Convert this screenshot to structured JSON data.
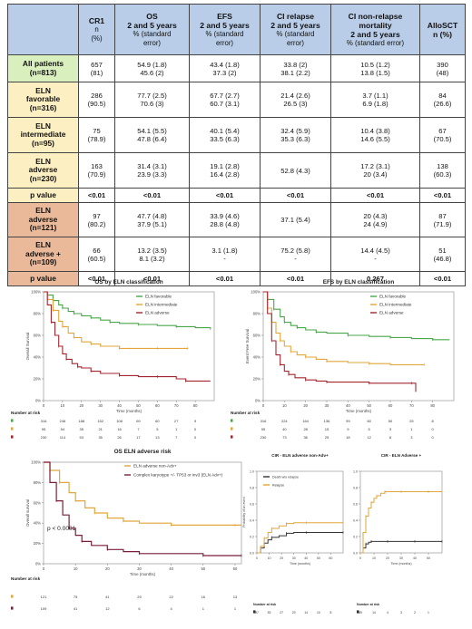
{
  "table": {
    "headers": [
      {
        "l1": "",
        "l2": ""
      },
      {
        "l1": "CR1",
        "l2": "n\n(%)"
      },
      {
        "l1": "OS\n2 and 5 years",
        "l2": "% (standard\nerror)"
      },
      {
        "l1": "EFS\n2 and 5 years",
        "l2": "% (standard\nerror)"
      },
      {
        "l1": "CI relapse\n2 and 5 years",
        "l2": "% (standard\nerror)"
      },
      {
        "l1": "CI non-relapse\nmortality\n2 and 5 years",
        "l2": "% (standard error)"
      },
      {
        "l1": "AlloSCT\nn (%)",
        "l2": ""
      }
    ],
    "rows": [
      {
        "label": "All patients\n(n=813)",
        "bg": "g",
        "cells": [
          "657\n(81)",
          "54.9 (1.8)\n45.6 (2)",
          "43.4 (1.8)\n37.3 (2)",
          "33.8 (2)\n38.1 (2.2)",
          "10.5 (1.2)\n13.8 (1.5)",
          "390\n(48)"
        ]
      },
      {
        "label": "ELN\nfavorable\n(n=316)",
        "bg": "y",
        "cells": [
          "286\n(90.5)",
          "77.7 (2.5)\n70.6 (3)",
          "67.7 (2.7)\n60.7 (3.1)",
          "21.4 (2.6)\n26.5 (3)",
          "3.7 (1.1)\n6.9 (1.8)",
          "84\n(26.6)"
        ]
      },
      {
        "label": "ELN\nintermediate\n(n=95)",
        "bg": "y",
        "cells": [
          "75\n(78.9)",
          "54.1 (5.5)\n47.8 (6.4)",
          "40.1 (5.4)\n33.5 (6.3)",
          "32.4 (5.9)\n35.3 (6.3)",
          "10.4 (3.8)\n14.6 (5.5)",
          "67\n(70.5)"
        ]
      },
      {
        "label": "ELN\nadverse\n(n=230)",
        "bg": "y",
        "cells": [
          "163\n(70.9)",
          "31.4 (3.1)\n23.9 (3.3)",
          "19.1 (2.8)\n16.4 (2.8)",
          "52.8 (4.3)",
          "17.2 (3.1)\n20 (3.4)",
          "138\n(60.3)"
        ]
      },
      {
        "label": "p value",
        "bg": "y",
        "pv": true,
        "cells": [
          "<0.01",
          "<0.01",
          "<0.01",
          "<0.01",
          "<0.01",
          "<0.01"
        ]
      },
      {
        "label": "ELN\nadverse\n(n=121)",
        "bg": "o",
        "cells": [
          "97\n(80.2)",
          "47.7 (4.8)\n37.9 (5.1)",
          "33.9 (4.6)\n28.8 (4.8)",
          "37.1 (5.4)",
          "20 (4.3)\n24 (4.9)",
          "87\n(71.9)"
        ]
      },
      {
        "label": "ELN\nadverse +\n(n=109)",
        "bg": "o",
        "cells": [
          "66\n(60.5)",
          "13.2 (3.5)\n8.1 (3.2)",
          "3.1 (1.8)\n-",
          "75.2 (5.8)\n-",
          "14.4 (4.5)\n-",
          "51\n(46.8)"
        ]
      },
      {
        "label": "p value",
        "bg": "o",
        "pv": true,
        "cells": [
          "<0.01",
          "<0.01",
          "<0.01",
          "<0.01",
          "0.267",
          "<0.01"
        ]
      }
    ]
  },
  "chart_data": [
    {
      "type": "line",
      "title": "OS by ELN classification",
      "ylabel": "Overall Survival",
      "xlabel": "Time (months)",
      "xlim": [
        0,
        90
      ],
      "ylim": [
        0,
        100
      ],
      "xticks": [
        0,
        10,
        20,
        30,
        40,
        50,
        60,
        70,
        80
      ],
      "yticks": [
        "0%",
        "20%",
        "40%",
        "60%",
        "80%",
        "100%"
      ],
      "legend_position": "right",
      "series": [
        {
          "name": "ELN favorable",
          "color": "#4aa64a",
          "x": [
            0,
            2,
            5,
            8,
            10,
            13,
            16,
            20,
            25,
            30,
            35,
            40,
            50,
            60,
            70,
            80,
            88
          ],
          "y": [
            100,
            97,
            92,
            88,
            85,
            82,
            80,
            78,
            76,
            74,
            72,
            71,
            70,
            69,
            68,
            67,
            66
          ]
        },
        {
          "name": "ELN intermediate",
          "color": "#e2a63a",
          "x": [
            0,
            2,
            5,
            8,
            10,
            13,
            16,
            20,
            25,
            30,
            40,
            50,
            60,
            70,
            76
          ],
          "y": [
            100,
            93,
            83,
            73,
            68,
            62,
            58,
            54,
            52,
            50,
            48,
            48,
            48,
            48,
            48
          ]
        },
        {
          "name": "ELN adverse",
          "color": "#a3262f",
          "x": [
            0,
            2,
            4,
            6,
            8,
            10,
            12,
            15,
            18,
            20,
            25,
            30,
            40,
            50,
            60,
            70,
            75,
            88
          ],
          "y": [
            100,
            88,
            72,
            60,
            50,
            43,
            38,
            34,
            31,
            30,
            27,
            25,
            23,
            22,
            22,
            20,
            18,
            18
          ]
        }
      ],
      "risk_table": {
        "title": "Number at risk",
        "rows": [
          {
            "color": "#4aa64a",
            "values": [
              "316",
              "246",
              "188",
              "152",
              "108",
              "69",
              "60",
              "27",
              "9"
            ]
          },
          {
            "color": "#e2a63a",
            "values": [
              "95",
              "54",
              "35",
              "21",
              "16",
              "7",
              "5",
              "1",
              "0"
            ]
          },
          {
            "color": "#a3262f",
            "values": [
              "230",
              "114",
              "53",
              "35",
              "26",
              "17",
              "13",
              "7",
              "0"
            ]
          }
        ]
      }
    },
    {
      "type": "line",
      "title": "EFS by ELN classification",
      "ylabel": "Event Free Survival",
      "xlabel": "Time (months)",
      "xlim": [
        0,
        90
      ],
      "ylim": [
        0,
        100
      ],
      "xticks": [
        0,
        10,
        20,
        30,
        40,
        50,
        60,
        70,
        80
      ],
      "yticks": [
        "0%",
        "20%",
        "40%",
        "60%",
        "80%",
        "100%"
      ],
      "legend_position": "right",
      "series": [
        {
          "name": "ELN favorable",
          "color": "#4aa64a",
          "x": [
            0,
            2,
            5,
            8,
            10,
            13,
            16,
            20,
            25,
            30,
            40,
            50,
            60,
            70,
            80,
            88
          ],
          "y": [
            100,
            93,
            84,
            77,
            72,
            69,
            67,
            65,
            63,
            62,
            60,
            59,
            58,
            57,
            56,
            56
          ]
        },
        {
          "name": "ELN intermediate",
          "color": "#e2a63a",
          "x": [
            0,
            2,
            4,
            6,
            8,
            10,
            13,
            16,
            20,
            25,
            30,
            40,
            50,
            60,
            76
          ],
          "y": [
            100,
            85,
            72,
            62,
            55,
            50,
            45,
            42,
            40,
            38,
            36,
            35,
            34,
            33,
            33
          ]
        },
        {
          "name": "ELN adverse",
          "color": "#a3262f",
          "x": [
            0,
            2,
            4,
            6,
            8,
            10,
            12,
            15,
            20,
            25,
            30,
            40,
            50,
            60,
            70,
            72
          ],
          "y": [
            100,
            80,
            55,
            42,
            33,
            27,
            24,
            21,
            19,
            18,
            17,
            17,
            16,
            16,
            16,
            8
          ]
        }
      ],
      "risk_table": {
        "title": "Number at risk",
        "rows": [
          {
            "color": "#4aa64a",
            "values": [
              "316",
              "224",
              "164",
              "136",
              "99",
              "60",
              "50",
              "25",
              "8"
            ]
          },
          {
            "color": "#e2a63a",
            "values": [
              "95",
              "40",
              "28",
              "15",
              "9",
              "5",
              "3",
              "1",
              "0"
            ]
          },
          {
            "color": "#a3262f",
            "values": [
              "230",
              "73",
              "36",
              "25",
              "18",
              "12",
              "8",
              "3",
              "0"
            ]
          }
        ]
      }
    },
    {
      "type": "line",
      "title": "OS ELN adverse risk",
      "ylabel": "Overall survival",
      "xlabel": "Time (months)",
      "xlim": [
        0,
        62
      ],
      "ylim": [
        0,
        100
      ],
      "xticks": [
        0,
        10,
        20,
        30,
        40,
        50,
        60
      ],
      "yticks": [
        "0%",
        "20%",
        "40%",
        "60%",
        "80%",
        "100%"
      ],
      "legend_position": "top-right",
      "annotation": "p < 0.0001",
      "series": [
        {
          "name": "ELN adverse non-Adv+",
          "color": "#e2a63a",
          "x": [
            0,
            2,
            5,
            8,
            10,
            13,
            16,
            20,
            25,
            30,
            40,
            50,
            60,
            62
          ],
          "y": [
            100,
            92,
            80,
            70,
            62,
            55,
            50,
            45,
            42,
            40,
            38,
            38,
            38,
            38
          ]
        },
        {
          "name": "Complex karyotype +/- TP53 or inv3 (ELN Adv+)",
          "color": "#7a1f3a",
          "x": [
            0,
            2,
            4,
            6,
            8,
            10,
            12,
            15,
            20,
            25,
            30,
            40,
            50,
            60,
            62
          ],
          "y": [
            100,
            80,
            62,
            48,
            35,
            28,
            22,
            18,
            14,
            12,
            10,
            10,
            8,
            8,
            8
          ]
        }
      ],
      "risk_table": {
        "title": "Number at risk",
        "rows": [
          {
            "color": "#e2a63a",
            "values": [
              "121",
              "75",
              "41",
              "29",
              "22",
              "16",
              "13"
            ]
          },
          {
            "color": "#7a1f3a",
            "values": [
              "109",
              "41",
              "12",
              "6",
              "4",
              "1",
              "1"
            ]
          }
        ]
      }
    },
    {
      "type": "line",
      "title": "CIR - ELN adverse non-Adv+",
      "ylabel": "Probability of an event",
      "xlabel": "Time (months)",
      "xlim": [
        0,
        70
      ],
      "ylim": [
        0,
        1
      ],
      "xticks": [
        0,
        10,
        20,
        30,
        40,
        50,
        60
      ],
      "yticks": [
        "0.0",
        "0.2",
        "0.4",
        "0.6",
        "0.8",
        "1.0"
      ],
      "legend_position": "top-left",
      "series": [
        {
          "name": "Death w/o relapse",
          "color": "#333333",
          "x": [
            0,
            3,
            6,
            9,
            12,
            18,
            24,
            30,
            40,
            60,
            70
          ],
          "y": [
            0,
            0.06,
            0.12,
            0.16,
            0.19,
            0.21,
            0.24,
            0.25,
            0.25,
            0.25,
            0.25
          ]
        },
        {
          "name": "Relapse",
          "color": "#e2a63a",
          "x": [
            0,
            3,
            6,
            9,
            12,
            18,
            24,
            30,
            40,
            60,
            70
          ],
          "y": [
            0,
            0.08,
            0.18,
            0.25,
            0.3,
            0.33,
            0.36,
            0.37,
            0.37,
            0.37,
            0.37
          ]
        }
      ],
      "risk_table": {
        "title": "Number at risk",
        "rows": [
          {
            "color": "#333333",
            "values": [
              "97",
              "53",
              "27",
              "20",
              "14",
              "10",
              "8"
            ]
          }
        ]
      }
    },
    {
      "type": "line",
      "title": "CIR - ELN Adverse +",
      "xlabel": "Time (months)",
      "xlim": [
        0,
        60
      ],
      "ylim": [
        0,
        1
      ],
      "xticks": [
        0,
        10,
        20,
        30,
        40,
        50
      ],
      "yticks": [
        "0.0",
        "0.2",
        "0.4",
        "0.6",
        "0.8",
        "1.0"
      ],
      "series": [
        {
          "name": "Death w/o relapse",
          "color": "#333333",
          "x": [
            0,
            2,
            4,
            6,
            8,
            10,
            20,
            30,
            40,
            50,
            60
          ],
          "y": [
            0,
            0.06,
            0.11,
            0.13,
            0.14,
            0.14,
            0.14,
            0.14,
            0.14,
            0.14,
            0.14
          ]
        },
        {
          "name": "Relapse",
          "color": "#e2a63a",
          "x": [
            0,
            2,
            4,
            6,
            8,
            10,
            12,
            15,
            18,
            20,
            30,
            40,
            50,
            60
          ],
          "y": [
            0,
            0.25,
            0.45,
            0.55,
            0.62,
            0.67,
            0.7,
            0.73,
            0.75,
            0.75,
            0.75,
            0.75,
            0.75,
            0.75
          ]
        }
      ],
      "risk_table": {
        "title": "Number at risk",
        "rows": [
          {
            "color": "#333333",
            "values": [
              "69",
              "14",
              "4",
              "3",
              "2",
              "1"
            ]
          }
        ]
      }
    }
  ]
}
